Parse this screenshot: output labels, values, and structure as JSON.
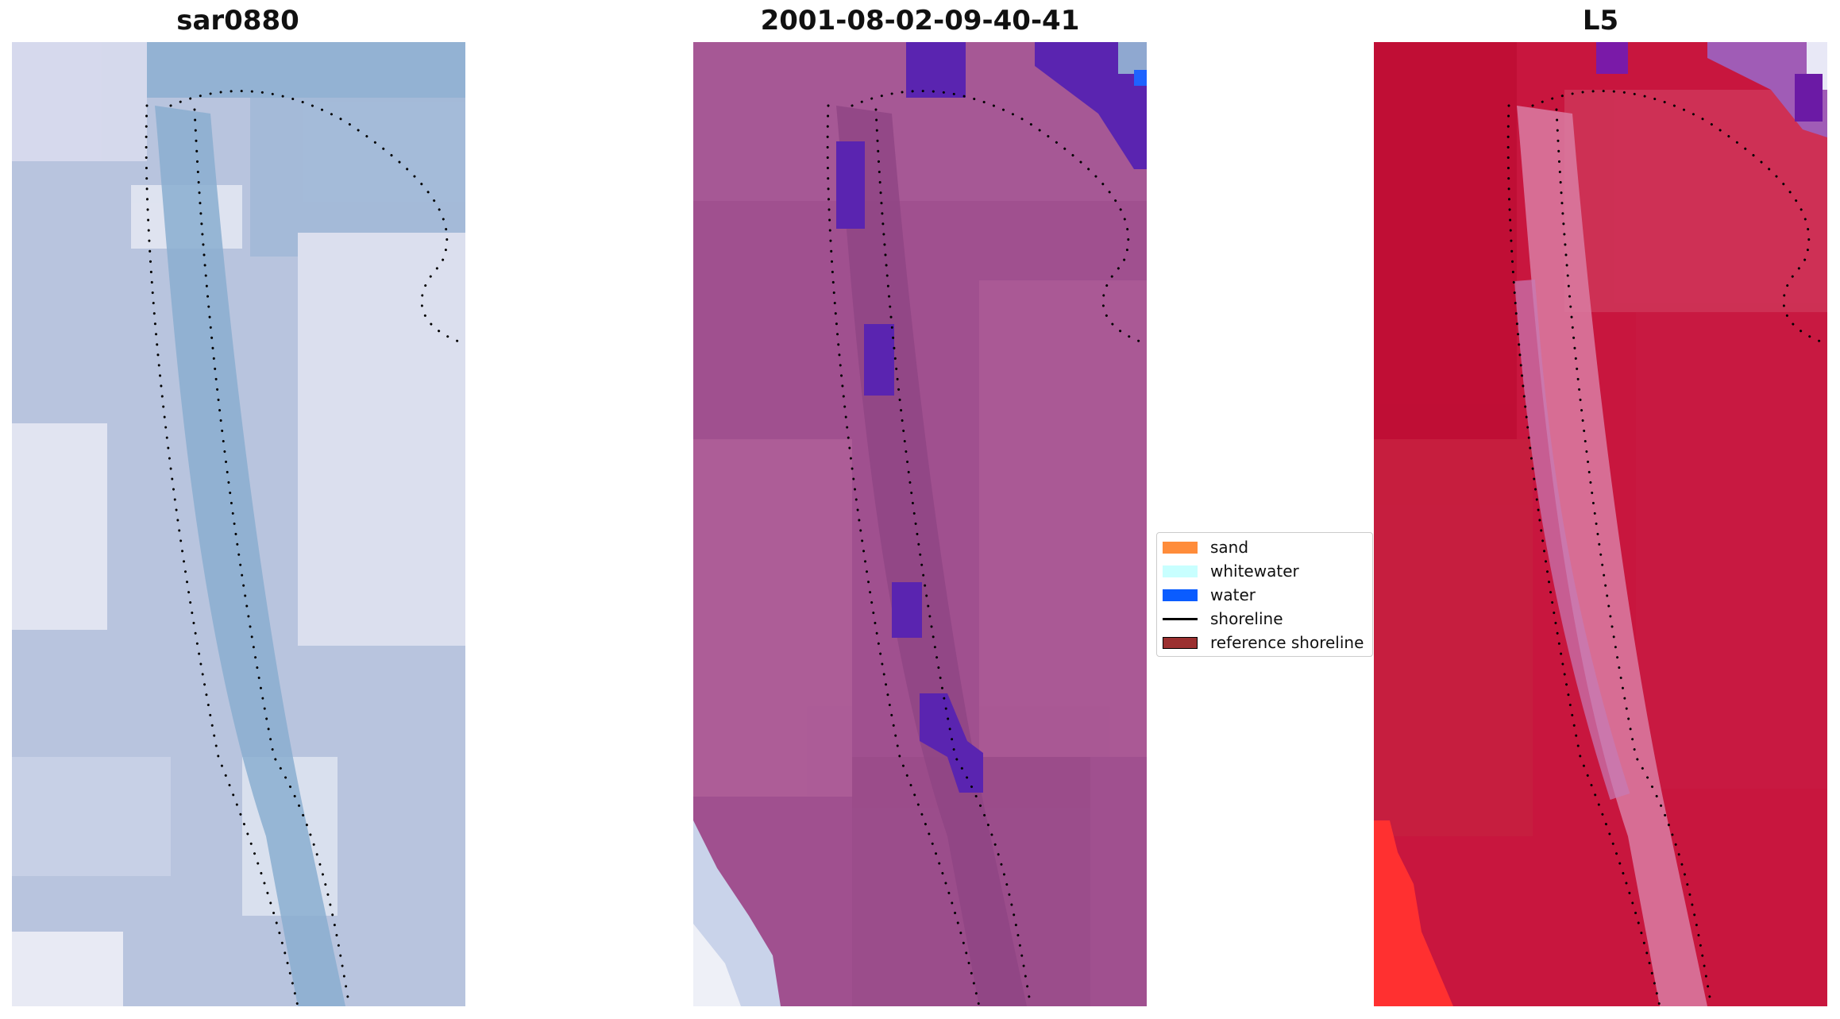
{
  "panels": [
    {
      "title": "sar0880"
    },
    {
      "title": "2001-08-02-09-40-41"
    },
    {
      "title": "L5"
    }
  ],
  "legend": {
    "items": [
      {
        "label": "sand",
        "color": "#ff8c3a",
        "kind": "patch"
      },
      {
        "label": "whitewater",
        "color": "#c8ffff",
        "kind": "patch"
      },
      {
        "label": "water",
        "color": "#0a5cff",
        "kind": "patch"
      },
      {
        "label": "shoreline",
        "color": "#000000",
        "kind": "line"
      },
      {
        "label": "reference shoreline",
        "color": "#9b3030",
        "kind": "patch"
      }
    ]
  },
  "colors": {
    "rgb_base": "#a9b9d6",
    "classified_base": "#a0508f",
    "index_base": "#c8163e",
    "water_overlay": "#5a24b0"
  }
}
